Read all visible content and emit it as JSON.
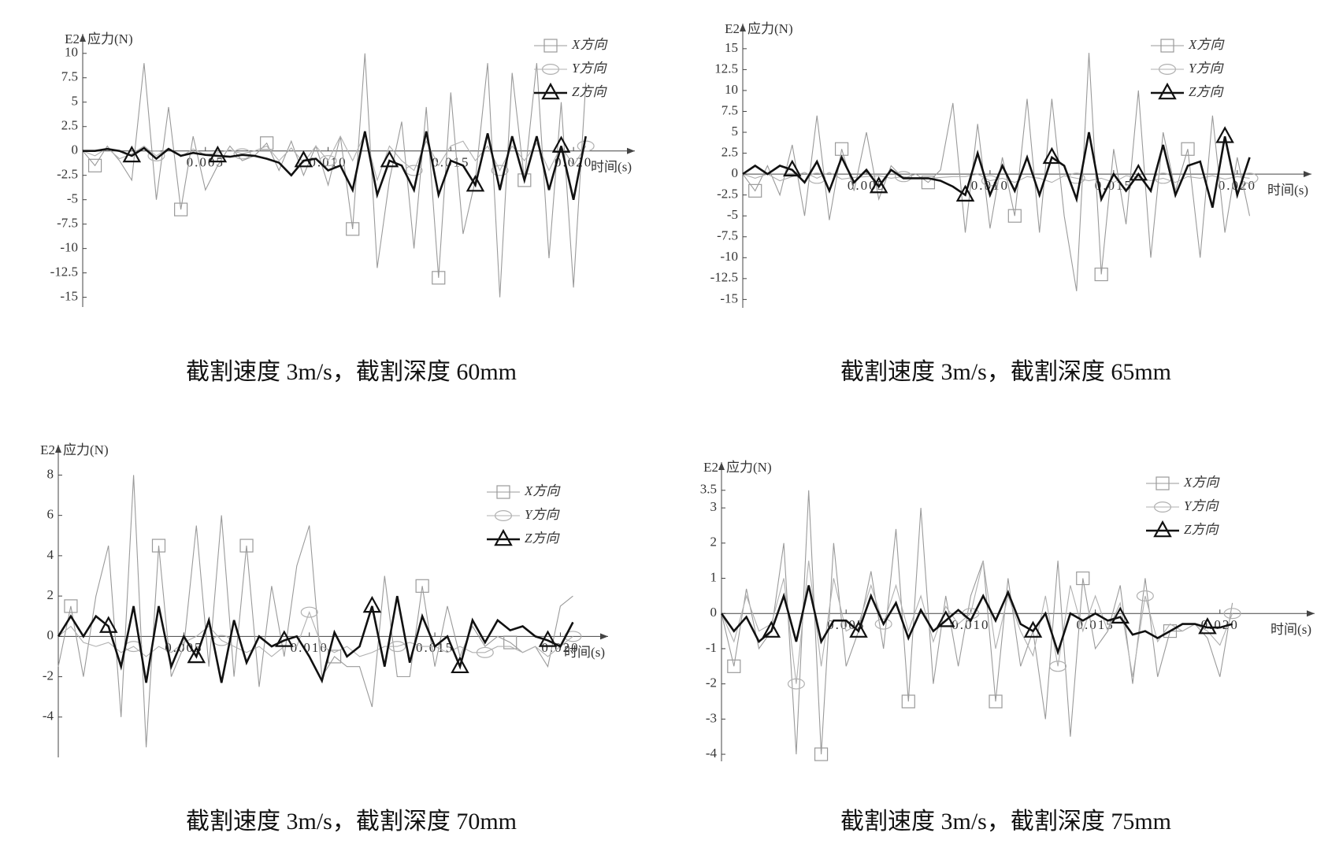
{
  "chart_data": [
    {
      "type": "line",
      "caption": "截割速度 3m/s，截割深度 60mm",
      "y_scale_label": "E2",
      "y_label": "应力(N)",
      "x_label": "时间(s)",
      "legend": "upper right",
      "x": [
        0,
        0.0005,
        0.001,
        0.0015,
        0.002,
        0.0025,
        0.003,
        0.0035,
        0.004,
        0.0045,
        0.005,
        0.0055,
        0.006,
        0.0065,
        0.007,
        0.0075,
        0.008,
        0.0085,
        0.009,
        0.0095,
        0.01,
        0.0105,
        0.011,
        0.0115,
        0.012,
        0.0125,
        0.013,
        0.0135,
        0.014,
        0.0145,
        0.015,
        0.0155,
        0.016,
        0.0165,
        0.017,
        0.0175,
        0.018,
        0.0185,
        0.019,
        0.0195,
        0.02,
        0.0205
      ],
      "xlim": [
        0,
        0.0225
      ],
      "xticks": [
        0.005,
        {
          "value": 0.01,
          "label": "0.010"
        },
        0.015,
        {
          "value": 0.02,
          "label": "0.020"
        }
      ],
      "ylim": [
        -16,
        12
      ],
      "yticks": [
        10,
        7.5,
        5,
        2.5,
        0,
        -2.5,
        -5,
        -7.5,
        -10,
        -12.5,
        -15
      ],
      "series": [
        {
          "name": "X方向",
          "color": "#9a9a9a",
          "marker": "square",
          "values": [
            0,
            -1.5,
            0.5,
            -1,
            -3,
            9,
            -5,
            4.5,
            -6,
            1.5,
            -4,
            -1.5,
            0.5,
            -1,
            -0.5,
            0.8,
            -2,
            1,
            -2.5,
            0.5,
            -3.5,
            1.5,
            -8,
            10,
            -12,
            -3,
            3,
            -10,
            4.5,
            -13,
            6,
            -8.5,
            -3,
            9,
            -15,
            8,
            -3,
            9,
            -11,
            5,
            -14,
            7
          ]
        },
        {
          "name": "Y方向",
          "color": "#b0b0b0",
          "marker": "circle",
          "values": [
            0,
            -0.5,
            0.3,
            -0.8,
            -0.3,
            0.5,
            -0.5,
            0.3,
            -0.6,
            0.2,
            -0.4,
            -0.2,
            0.1,
            -0.3,
            0,
            0.5,
            -1,
            0.3,
            -1.2,
            0.5,
            -1,
            1.5,
            -1,
            1.8,
            -3,
            0.5,
            -1,
            -2,
            1,
            -1.5,
            0.5,
            1,
            -1,
            0.5,
            -2,
            0.5,
            -1,
            0.8,
            -2,
            0.5,
            -1.5,
            0.5
          ]
        },
        {
          "name": "Z方向",
          "color": "#111111",
          "marker": "triangle",
          "values": [
            0,
            0,
            0.2,
            0,
            -0.5,
            0.3,
            -0.8,
            0.2,
            -0.5,
            -0.2,
            -0.4,
            -0.5,
            -0.6,
            -0.4,
            -0.5,
            -0.8,
            -1.2,
            -2.5,
            -1,
            -0.8,
            -2,
            -1.5,
            -4,
            2,
            -4.5,
            -1,
            -1.5,
            -4,
            2,
            -4.5,
            -1,
            -1.5,
            -3.5,
            1.8,
            -4,
            1.5,
            -3,
            1.5,
            -4,
            0.5,
            -5,
            1.5
          ]
        }
      ]
    },
    {
      "type": "line",
      "caption": "截割速度 3m/s，截割深度 65mm",
      "y_scale_label": "E2",
      "y_label": "应力(N)",
      "x_label": "时间(s)",
      "legend": "upper right",
      "x": [
        0,
        0.0005,
        0.001,
        0.0015,
        0.002,
        0.0025,
        0.003,
        0.0035,
        0.004,
        0.0045,
        0.005,
        0.0055,
        0.006,
        0.0065,
        0.007,
        0.0075,
        0.008,
        0.0085,
        0.009,
        0.0095,
        0.01,
        0.0105,
        0.011,
        0.0115,
        0.012,
        0.0125,
        0.013,
        0.0135,
        0.014,
        0.0145,
        0.015,
        0.0155,
        0.016,
        0.0165,
        0.017,
        0.0175,
        0.018,
        0.0185,
        0.019,
        0.0195,
        0.02,
        0.0205
      ],
      "xlim": [
        0,
        0.023
      ],
      "xticks": [
        0.005,
        {
          "value": 0.01,
          "label": "0.010"
        },
        0.015,
        {
          "value": 0.02,
          "label": "0.020"
        }
      ],
      "ylim": [
        -16,
        18
      ],
      "yticks": [
        15,
        12.5,
        10,
        7.5,
        5,
        2.5,
        0,
        -2.5,
        -5,
        -7.5,
        -10,
        -12.5,
        -15
      ],
      "series": [
        {
          "name": "X方向",
          "color": "#9a9a9a",
          "marker": "square",
          "values": [
            0,
            -2,
            1,
            -2.5,
            3.5,
            -5,
            7,
            -5.5,
            3,
            -2,
            5,
            -3,
            1,
            -0.5,
            0,
            -1,
            0.5,
            8.5,
            -7,
            6,
            -6.5,
            2,
            -5,
            9,
            -7,
            9,
            -5,
            -14,
            14.5,
            -12,
            3,
            -6,
            10,
            -10,
            5,
            -2,
            3,
            -10,
            7,
            -7,
            2,
            -5
          ]
        },
        {
          "name": "Y方向",
          "color": "#b0b0b0",
          "marker": "circle",
          "values": [
            0,
            -0.5,
            0,
            -0.8,
            -0.3,
            0.2,
            -0.5,
            0.2,
            -0.6,
            -0.4,
            -0.3,
            -0.2,
            -0.5,
            -0.3,
            -0.5,
            -0.5,
            -0.4,
            -0.3,
            -0.3,
            0,
            -0.8,
            -0.5,
            -1,
            -0.3,
            -0.5,
            -1,
            -0.2,
            -0.5,
            -0.8,
            -0.5,
            -1,
            -0.2,
            -0.4,
            -0.8,
            -0.5,
            -1,
            -0.3,
            -0.5,
            -0.2,
            -0.6,
            -0.3,
            -0.5
          ]
        },
        {
          "name": "Z方向",
          "color": "#111111",
          "marker": "triangle",
          "values": [
            0,
            1,
            0,
            1,
            0.5,
            -1,
            1.5,
            -2,
            2,
            -1,
            0.5,
            -1.5,
            0.5,
            -0.5,
            -0.5,
            -0.5,
            -0.8,
            -1.5,
            -2.5,
            2.5,
            -2.5,
            1,
            -2,
            2,
            -2.5,
            2,
            1,
            -3,
            5,
            -3,
            0,
            -2,
            0,
            -2,
            3.5,
            -2.5,
            1,
            1.5,
            -4,
            4.5,
            -2.5,
            2
          ]
        }
      ]
    },
    {
      "type": "line",
      "caption": "截割速度 3m/s，截割深度 70mm",
      "y_scale_label": "E2",
      "y_label": "应力(N)",
      "x_label": "时间(s)",
      "legend": "upper right",
      "x": [
        0,
        0.0005,
        0.001,
        0.0015,
        0.002,
        0.0025,
        0.003,
        0.0035,
        0.004,
        0.0045,
        0.005,
        0.0055,
        0.006,
        0.0065,
        0.007,
        0.0075,
        0.008,
        0.0085,
        0.009,
        0.0095,
        0.01,
        0.0105,
        0.011,
        0.0115,
        0.012,
        0.0125,
        0.013,
        0.0135,
        0.014,
        0.0145,
        0.015,
        0.0155,
        0.016,
        0.0165,
        0.017,
        0.0175,
        0.018,
        0.0185,
        0.019,
        0.0195,
        0.02,
        0.0205
      ],
      "xlim": [
        0,
        0.0219
      ],
      "xticks": [
        0.005,
        {
          "value": 0.01,
          "label": "0.010"
        },
        0.015,
        {
          "value": 0.02,
          "label": "0.020"
        }
      ],
      "ylim": [
        -6,
        9.5
      ],
      "yticks": [
        8,
        6,
        4,
        2,
        0,
        -2,
        -4
      ],
      "series": [
        {
          "name": "X方向",
          "color": "#9a9a9a",
          "marker": "square",
          "values": [
            -1.5,
            1.5,
            -2,
            2,
            4.5,
            -4,
            8,
            -5.5,
            4.5,
            -2,
            -0.5,
            5.5,
            -1.5,
            6,
            -2,
            4.5,
            -2.5,
            2.5,
            -1,
            3.5,
            5.5,
            -2,
            -1,
            -1.5,
            -1.5,
            -3.5,
            3,
            -2,
            -2,
            2.5,
            -1.5,
            1.5,
            -1,
            0.5,
            -0.5,
            0,
            -0.3,
            -0.8,
            -0.5,
            -1.5,
            1.5,
            2
          ]
        },
        {
          "name": "Y方向",
          "color": "#b0b0b0",
          "marker": "circle",
          "values": [
            0,
            0.5,
            -0.3,
            -0.5,
            -0.3,
            -0.8,
            -0.5,
            -1,
            -0.5,
            -0.8,
            -0.3,
            0,
            0.5,
            -0.2,
            -0.5,
            -0.8,
            -0.5,
            -1,
            -0.5,
            -0.5,
            1.2,
            -0.5,
            -0.8,
            -0.5,
            -1,
            -0.8,
            -0.5,
            -0.5,
            -0.3,
            -0.5,
            -0.5,
            -0.8,
            -0.5,
            -0.8,
            -0.8,
            -0.5,
            -0.5,
            -0.8,
            -0.5,
            -1,
            -0.5,
            0
          ]
        },
        {
          "name": "Z方向",
          "color": "#111111",
          "marker": "triangle",
          "values": [
            0,
            1,
            0,
            1,
            0.5,
            -1.5,
            1.5,
            -2.3,
            1.5,
            -1.5,
            0,
            -1,
            0.8,
            -2.3,
            0.8,
            -1.3,
            0,
            -0.5,
            -0.2,
            0,
            -1,
            -2.2,
            0.2,
            -1,
            -0.5,
            1.5,
            -1.5,
            2,
            -1.3,
            1,
            -0.5,
            0,
            -1.5,
            0.8,
            -0.3,
            0.8,
            0.3,
            0.5,
            0,
            -0.2,
            -0.5,
            0.7
          ]
        }
      ]
    },
    {
      "type": "line",
      "caption": "截割速度 3m/s，截割深度 75mm",
      "y_scale_label": "E2",
      "y_label": "应力(N)",
      "x_label": "时间(s)",
      "legend": "upper right",
      "x": [
        0,
        0.0005,
        0.001,
        0.0015,
        0.002,
        0.0025,
        0.003,
        0.0035,
        0.004,
        0.0045,
        0.005,
        0.0055,
        0.006,
        0.0065,
        0.007,
        0.0075,
        0.008,
        0.0085,
        0.009,
        0.0095,
        0.01,
        0.0105,
        0.011,
        0.0115,
        0.012,
        0.0125,
        0.013,
        0.0135,
        0.014,
        0.0145,
        0.015,
        0.0155,
        0.016,
        0.0165,
        0.017,
        0.0175,
        0.018,
        0.0185,
        0.019,
        0.0195,
        0.02,
        0.0205
      ],
      "xlim": [
        0,
        0.0238
      ],
      "xticks": [
        0.005,
        {
          "value": 0.01,
          "label": "0.010"
        },
        0.015,
        {
          "value": 0.02,
          "label": "0.020"
        }
      ],
      "ylim": [
        -4.2,
        4.3
      ],
      "yticks": [
        3.5,
        3,
        2,
        1,
        0,
        -1,
        -2,
        -3,
        -4
      ],
      "series": [
        {
          "name": "X方向",
          "color": "#9a9a9a",
          "marker": "square",
          "values": [
            0,
            -1.5,
            0.7,
            -1,
            -0.5,
            2,
            -4,
            3.5,
            -4,
            2,
            -1.5,
            -0.5,
            1.2,
            -1,
            2.4,
            -2.5,
            3,
            -2,
            0.5,
            -1.5,
            0.5,
            1.5,
            -2.5,
            1,
            -1.5,
            -0.5,
            -3,
            1.5,
            -3.5,
            1,
            -1,
            -0.5,
            0.8,
            -2,
            1,
            -1.8,
            -0.5,
            -0.5,
            -0.3,
            -0.7,
            -1.8,
            0.3
          ]
        },
        {
          "name": "Y方向",
          "color": "#b0b0b0",
          "marker": "circle",
          "values": [
            0,
            -0.8,
            0.5,
            -0.5,
            -0.3,
            1,
            -2,
            1.5,
            -1.5,
            1,
            -0.5,
            -0.3,
            0.8,
            -0.3,
            0.8,
            -0.5,
            0.5,
            -0.8,
            0.2,
            -0.3,
            0,
            1.5,
            -1,
            0.5,
            -0.5,
            -1.2,
            0.5,
            -1.5,
            0.8,
            -0.5,
            0.5,
            -0.5,
            0.3,
            -1.8,
            0.5,
            -0.8,
            -0.3,
            -0.5,
            -0.3,
            -0.5,
            -0.9,
            0
          ]
        },
        {
          "name": "Z方向",
          "color": "#111111",
          "marker": "triangle",
          "values": [
            0,
            -0.5,
            -0.1,
            -0.8,
            -0.5,
            0.5,
            -0.8,
            0.8,
            -0.8,
            -0.2,
            -0.2,
            -0.5,
            0.5,
            -0.3,
            0.3,
            -0.7,
            0.1,
            -0.5,
            -0.2,
            0.1,
            -0.2,
            0.5,
            -0.2,
            0.6,
            -0.3,
            -0.5,
            0,
            -1.1,
            0,
            -0.2,
            0,
            -0.2,
            -0.1,
            -0.6,
            -0.5,
            -0.7,
            -0.5,
            -0.3,
            -0.3,
            -0.4,
            -0.4,
            -0.3
          ]
        }
      ]
    }
  ]
}
